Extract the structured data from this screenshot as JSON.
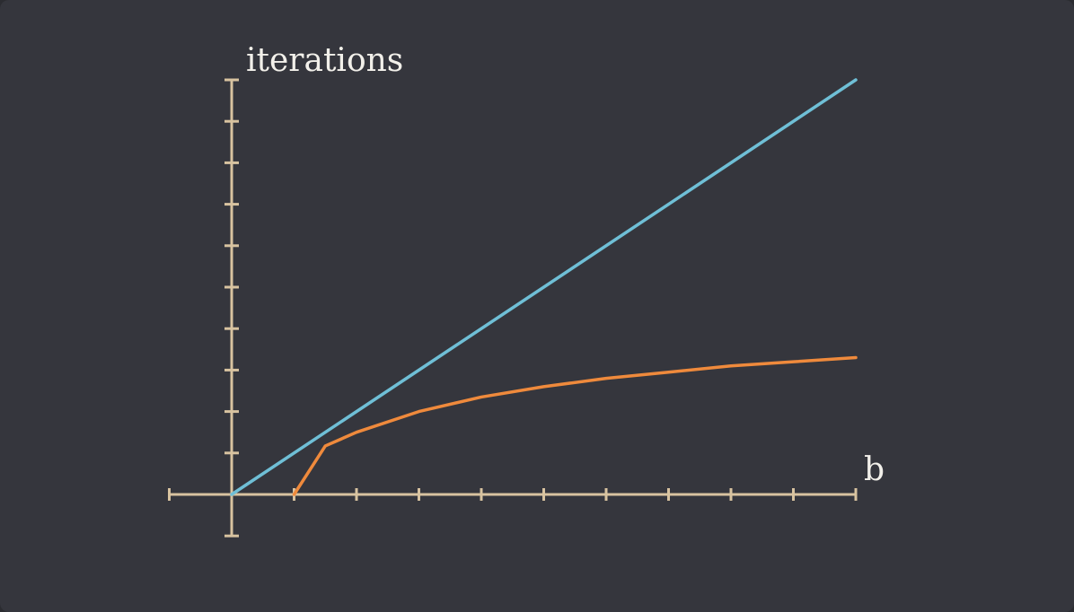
{
  "colors": {
    "panel_background": "#35363d",
    "axis": "#d8c3a0",
    "linear_series": "#6fbfd6",
    "log_series": "#ef8a3c",
    "label": "#f2f0ea"
  },
  "chart_data": {
    "type": "line",
    "xlabel": "b",
    "ylabel": "iterations",
    "xlim": [
      -1,
      10
    ],
    "ylim": [
      -1,
      10
    ],
    "x_ticks": [
      -1,
      0,
      1,
      2,
      3,
      4,
      5,
      6,
      7,
      8,
      9,
      10
    ],
    "y_ticks": [
      -1,
      0,
      1,
      2,
      3,
      4,
      5,
      6,
      7,
      8,
      9,
      10
    ],
    "tick_labels_shown": false,
    "grid": false,
    "series": [
      {
        "color": "#6fbfd6",
        "x": [
          0,
          10
        ],
        "y": [
          0,
          10
        ]
      },
      {
        "color": "#ef8a3c",
        "x": [
          1,
          1.5,
          2,
          3,
          4,
          5,
          6,
          7,
          8,
          9,
          10
        ],
        "y": [
          0,
          1.17,
          1.5,
          2.0,
          2.35,
          2.6,
          2.8,
          2.95,
          3.1,
          3.2,
          3.3
        ]
      }
    ]
  }
}
